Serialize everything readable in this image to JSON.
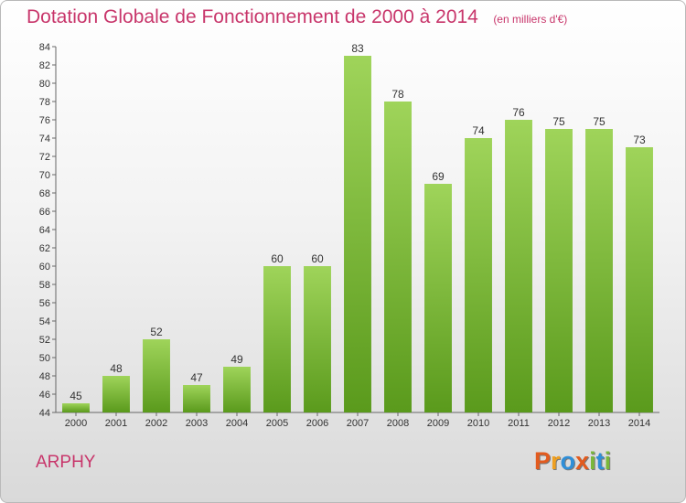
{
  "header": {
    "title": "Dotation Globale de Fonctionnement de 2000 à 2014",
    "unit": "(en milliers d'€)"
  },
  "footer": {
    "commune": "ARPHY",
    "logo_text": "Proxiti"
  },
  "colors": {
    "bar_top": "#9fd45a",
    "bar_bottom": "#5a9a1c",
    "title": "#c8366b",
    "logo": [
      "#e25b1f",
      "#f0a020",
      "#2f8fd8",
      "#e25b1f",
      "#79b83a",
      "#2f8fd8",
      "#79b83a"
    ]
  },
  "chart_data": {
    "type": "bar",
    "title": "Dotation Globale de Fonctionnement de 2000 à 2014",
    "subtitle": "(en milliers d'€)",
    "categories": [
      "2000",
      "2001",
      "2002",
      "2003",
      "2004",
      "2005",
      "2006",
      "2007",
      "2008",
      "2009",
      "2010",
      "2011",
      "2012",
      "2013",
      "2014"
    ],
    "values": [
      45,
      48,
      52,
      47,
      49,
      60,
      60,
      83,
      78,
      69,
      74,
      76,
      75,
      75,
      73
    ],
    "ylim": [
      44,
      84
    ],
    "yticks": [
      44,
      46,
      48,
      50,
      52,
      54,
      56,
      58,
      60,
      62,
      64,
      66,
      68,
      70,
      72,
      74,
      76,
      78,
      80,
      82,
      84
    ],
    "grid": false,
    "data_labels": true
  }
}
